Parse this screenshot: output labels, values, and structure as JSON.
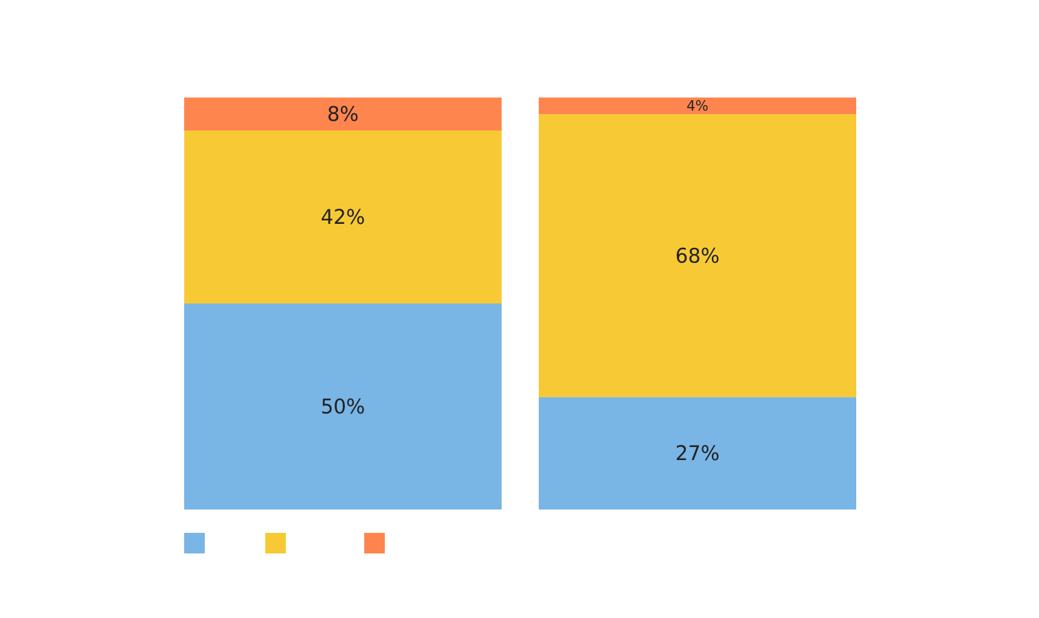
{
  "chart_data": {
    "type": "bar",
    "stacked": true,
    "normalized": true,
    "categories": [
      "",
      ""
    ],
    "series": [
      {
        "name": "",
        "color": "#79b5e5",
        "values": [
          50,
          27
        ],
        "labels": [
          "50%",
          "27%"
        ]
      },
      {
        "name": "",
        "color": "#f7ca35",
        "values": [
          42,
          68
        ],
        "labels": [
          "42%",
          "68%"
        ]
      },
      {
        "name": "",
        "color": "#ff854f",
        "values": [
          8,
          4
        ],
        "labels": [
          "8%",
          "4%"
        ]
      }
    ],
    "ylim": [
      0,
      100
    ],
    "grid": false,
    "axes_visible": false,
    "legend_placement": "bottom-left",
    "label_color": "#222222"
  }
}
